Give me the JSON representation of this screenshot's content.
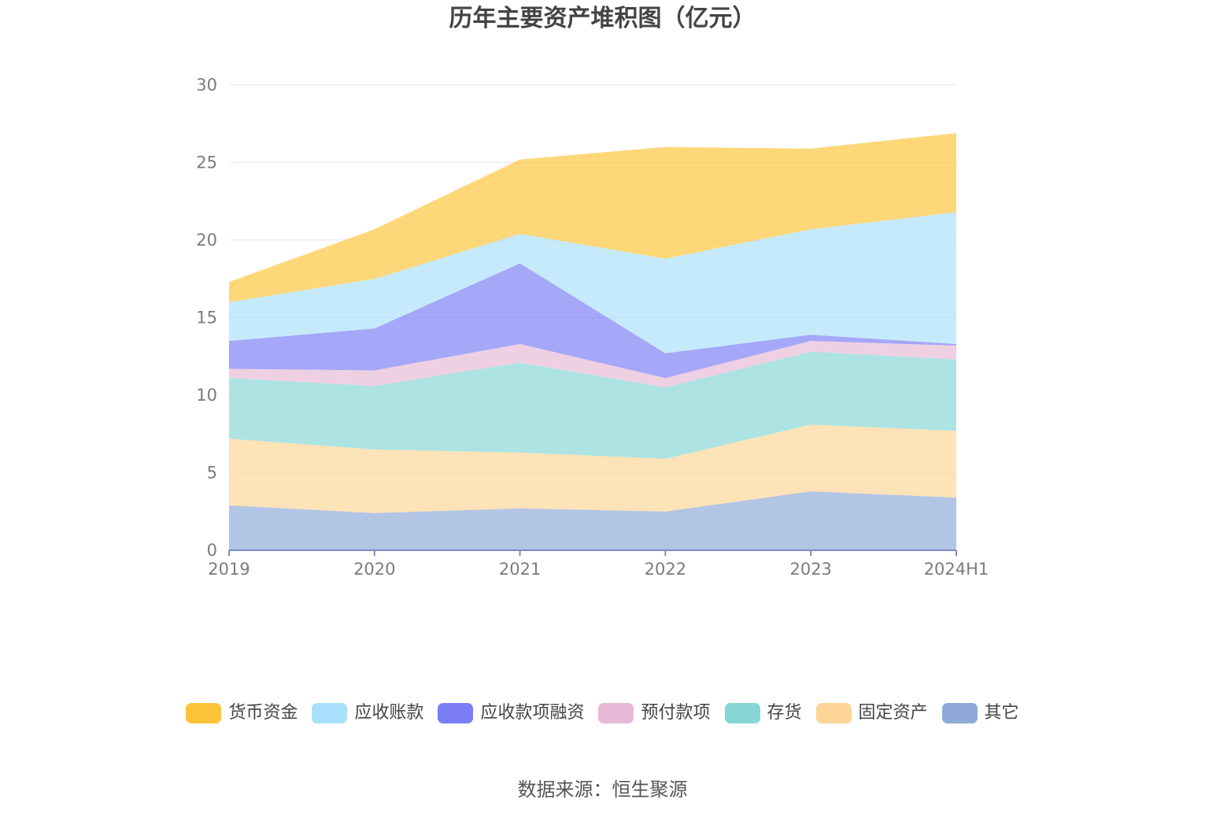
{
  "chart_data": {
    "type": "area",
    "stacked": true,
    "title": "历年主要资产堆积图（亿元）",
    "categories": [
      "2019",
      "2020",
      "2021",
      "2022",
      "2023",
      "2024H1"
    ],
    "ylim": [
      0,
      30
    ],
    "yticks": [
      0,
      5,
      10,
      15,
      20,
      25,
      30
    ],
    "grid": true,
    "legend_position": "bottom",
    "series": [
      {
        "name": "其它",
        "color": "#8fa9d8",
        "values": [
          2.9,
          2.4,
          2.7,
          2.5,
          3.8,
          3.4
        ]
      },
      {
        "name": "固定资产",
        "color": "#fdd596",
        "values": [
          4.3,
          4.1,
          3.6,
          3.4,
          4.3,
          4.3
        ]
      },
      {
        "name": "存货",
        "color": "#86d6d6",
        "values": [
          3.9,
          4.1,
          5.8,
          4.6,
          4.7,
          4.6
        ]
      },
      {
        "name": "预付款项",
        "color": "#e7b9d6",
        "values": [
          0.6,
          1.0,
          1.2,
          0.6,
          0.7,
          0.9
        ]
      },
      {
        "name": "应收款项融资",
        "color": "#7b7df5",
        "values": [
          1.8,
          2.7,
          5.2,
          1.6,
          0.4,
          0.1
        ]
      },
      {
        "name": "应收账款",
        "color": "#a9e0fb",
        "values": [
          2.5,
          3.2,
          1.9,
          6.1,
          6.8,
          8.5
        ]
      },
      {
        "name": "货币资金",
        "color": "#fdc43a",
        "values": [
          1.3,
          3.2,
          4.8,
          7.2,
          5.2,
          5.1
        ]
      }
    ]
  },
  "legend_order": [
    "货币资金",
    "应收账款",
    "应收款项融资",
    "预付款项",
    "存货",
    "固定资产",
    "其它"
  ],
  "source_text": "数据来源：恒生聚源"
}
